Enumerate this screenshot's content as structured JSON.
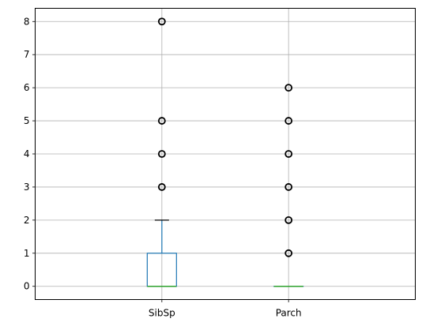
{
  "chart_data": {
    "type": "box",
    "title": "",
    "xlabel": "",
    "ylabel": "",
    "categories": [
      "SibSp",
      "Parch"
    ],
    "ylim": [
      -0.4,
      8.4
    ],
    "yticks": [
      0,
      1,
      2,
      3,
      4,
      5,
      6,
      7,
      8
    ],
    "grid": true,
    "colors": {
      "box": "#1f77b4",
      "median": "#2ca02c",
      "grid": "#b0b0b0",
      "axes": "#000000",
      "outlier": "#000000"
    },
    "boxes": [
      {
        "category": "SibSp",
        "min": 0,
        "q1": 0,
        "median": 0,
        "q3": 1,
        "max": 2,
        "outliers": [
          3,
          4,
          5,
          8
        ]
      },
      {
        "category": "Parch",
        "min": 0,
        "q1": 0,
        "median": 0,
        "q3": 0,
        "max": 0,
        "outliers": [
          1,
          2,
          3,
          4,
          5,
          6
        ]
      }
    ]
  }
}
